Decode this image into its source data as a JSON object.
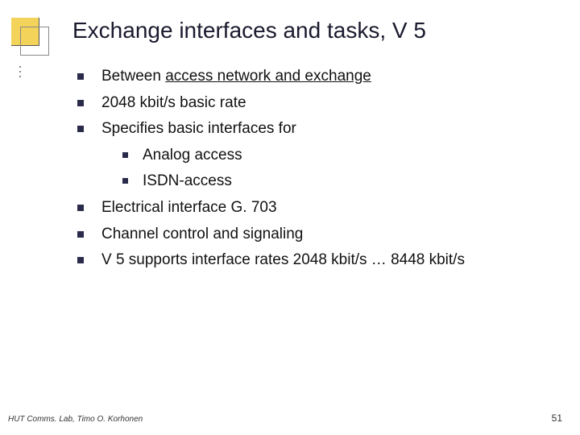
{
  "title": "Exchange interfaces and tasks, V 5",
  "bullets": {
    "b1_pre": "Between ",
    "b1_underline": "access network and exchange",
    "b2": "2048 kbit/s basic rate",
    "b3": "Specifies basic interfaces for",
    "b3a": "Analog access",
    "b3b": "ISDN-access",
    "b4": "Electrical interface G. 703",
    "b5": "Channel control and signaling",
    "b6": "V 5 supports interface rates 2048 kbit/s … 8448 kbit/s"
  },
  "footer": "HUT Comms. Lab, Timo O. Korhonen",
  "pagenum": "51",
  "colors": {
    "accent_yellow": "#f3d35a",
    "bullet": "#2a2a4a"
  }
}
